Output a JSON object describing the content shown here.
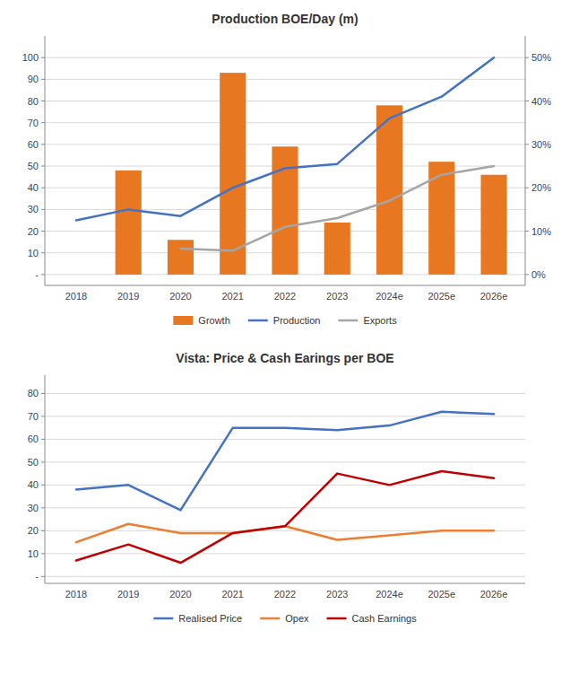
{
  "chart_data": [
    {
      "type": "bar",
      "title": "Production BOE/Day  (m)",
      "categories": [
        "2018",
        "2019",
        "2020",
        "2021",
        "2022",
        "2023",
        "2024e",
        "2025e",
        "2026e"
      ],
      "series": [
        {
          "name": "Growth",
          "type": "bar",
          "color": "#E87722",
          "values": [
            null,
            48,
            16,
            93,
            59,
            24,
            78,
            52,
            46
          ]
        },
        {
          "name": "Production",
          "type": "line",
          "color": "#4472C4",
          "values": [
            25,
            30,
            27,
            40,
            49,
            51,
            72,
            82,
            100
          ]
        },
        {
          "name": "Exports",
          "type": "line",
          "color": "#A5A5A5",
          "values": [
            null,
            null,
            12,
            11,
            22,
            26,
            34,
            46,
            50
          ]
        }
      ],
      "ylim": [
        -5,
        110
      ],
      "yticks": [
        {
          "value": 0,
          "label": "-"
        },
        10,
        20,
        30,
        40,
        50,
        60,
        70,
        80,
        90,
        100
      ],
      "y2lim": [
        -2.5,
        55
      ],
      "y2ticks": [
        {
          "value": 0,
          "label": "0%"
        },
        {
          "value": 10,
          "label": "10%"
        },
        {
          "value": 20,
          "label": "20%"
        },
        {
          "value": 30,
          "label": "30%"
        },
        {
          "value": 40,
          "label": "40%"
        },
        {
          "value": 50,
          "label": "50%"
        }
      ],
      "grid": true,
      "legend": "bottom"
    },
    {
      "type": "line",
      "title": "Vista: Price & Cash Earings per BOE",
      "categories": [
        "2018",
        "2019",
        "2020",
        "2021",
        "2022",
        "2023",
        "2024e",
        "2025e",
        "2026e"
      ],
      "series": [
        {
          "name": "Realised Price",
          "color": "#4472C4",
          "values": [
            38,
            40,
            29,
            65,
            65,
            64,
            66,
            72,
            71
          ]
        },
        {
          "name": "Opex",
          "color": "#ED7D31",
          "values": [
            15,
            23,
            19,
            19,
            22,
            16,
            18,
            20,
            20
          ]
        },
        {
          "name": "Cash Earnings",
          "color": "#C00000",
          "values": [
            7,
            14,
            6,
            19,
            22,
            45,
            40,
            46,
            43
          ]
        }
      ],
      "ylim": [
        -3,
        88
      ],
      "yticks": [
        {
          "value": 0,
          "label": "-"
        },
        10,
        20,
        30,
        40,
        50,
        60,
        70,
        80
      ],
      "grid": true,
      "legend": "bottom"
    }
  ]
}
